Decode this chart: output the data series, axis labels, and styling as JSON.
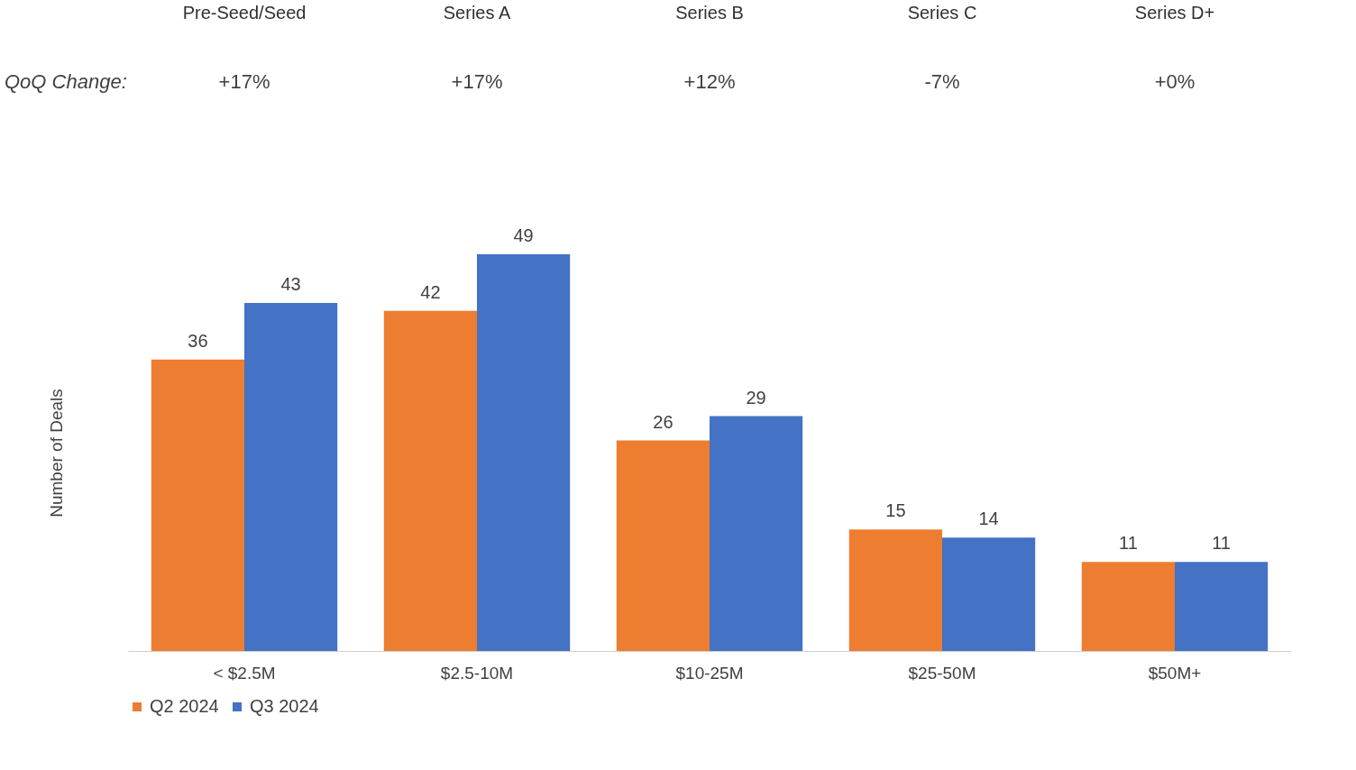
{
  "chart_data": {
    "type": "bar",
    "ylabel": "Number of Deals",
    "categories": [
      "< $2.5M",
      "$2.5-10M",
      "$10-25M",
      "$25-50M",
      "$50M+"
    ],
    "series": [
      {
        "name": "Q2 2024",
        "color": "#ed7d31",
        "values": [
          36,
          42,
          26,
          15,
          11
        ]
      },
      {
        "name": "Q3 2024",
        "color": "#4472c4",
        "values": [
          43,
          49,
          29,
          14,
          11
        ]
      }
    ],
    "data_labels": true,
    "grid": false,
    "legend": "bottom",
    "annotations": [
      "Pre-Seed/Seed",
      "Series A",
      "Series B",
      "Series C",
      "Series D+",
      "QoQ Change:",
      "+17%",
      "+17%",
      "+12%",
      "-7%",
      "+0%"
    ]
  }
}
